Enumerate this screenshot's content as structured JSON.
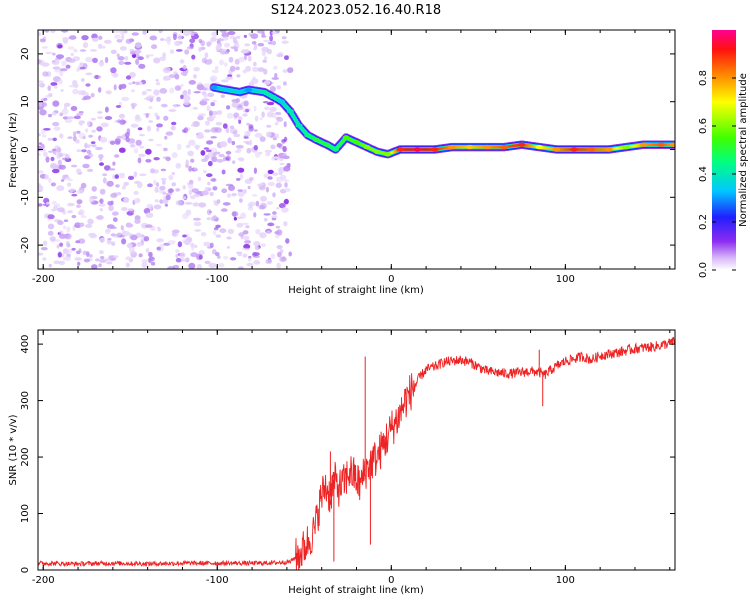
{
  "title": "S124.2023.052.16.40.R18",
  "chart_data": [
    {
      "type": "heatmap",
      "xlabel": "Height of straight line (km)",
      "ylabel": "Frequency (Hz)",
      "xlim": [
        -203,
        163
      ],
      "ylim": [
        -25,
        25
      ],
      "x_ticks": [
        -200,
        -100,
        0,
        100
      ],
      "x_tick_labels": [
        "-200",
        "-100",
        "0",
        "100"
      ],
      "y_ticks": [
        -20,
        -10,
        0,
        10,
        20
      ],
      "y_tick_labels": [
        "-20",
        "-10",
        "0",
        "10",
        "20"
      ],
      "colorbar": {
        "label": "Normalized spectral amplitude",
        "range": [
          0,
          1
        ],
        "ticks": [
          0.0,
          0.2,
          0.4,
          0.6,
          0.8
        ],
        "tick_labels": [
          "0.0",
          "0.2",
          "0.4",
          "0.6",
          "0.8"
        ]
      },
      "noise_region_x": [
        -203,
        -58
      ],
      "signal_track": [
        {
          "x": -102,
          "y": 13,
          "amp": 0.3
        },
        {
          "x": -95,
          "y": 12.5,
          "amp": 0.35
        },
        {
          "x": -87,
          "y": 12,
          "amp": 0.35
        },
        {
          "x": -82,
          "y": 12.5,
          "amp": 0.3
        },
        {
          "x": -73,
          "y": 12,
          "amp": 0.4
        },
        {
          "x": -68,
          "y": 11,
          "amp": 0.4
        },
        {
          "x": -63,
          "y": 10,
          "amp": 0.35
        },
        {
          "x": -58,
          "y": 8,
          "amp": 0.4
        },
        {
          "x": -53,
          "y": 5,
          "amp": 0.4
        },
        {
          "x": -48,
          "y": 3,
          "amp": 0.45
        },
        {
          "x": -43,
          "y": 2,
          "amp": 0.5
        },
        {
          "x": -37,
          "y": 1,
          "amp": 0.5
        },
        {
          "x": -32,
          "y": 0,
          "amp": 0.45
        },
        {
          "x": -26,
          "y": 2.5,
          "amp": 0.55
        },
        {
          "x": -20,
          "y": 1.5,
          "amp": 0.55
        },
        {
          "x": -14,
          "y": 0.5,
          "amp": 0.6
        },
        {
          "x": -8,
          "y": -0.5,
          "amp": 0.6
        },
        {
          "x": -2,
          "y": -1,
          "amp": 0.6
        },
        {
          "x": 5,
          "y": 0,
          "amp": 0.9
        },
        {
          "x": 15,
          "y": 0,
          "amp": 0.95
        },
        {
          "x": 25,
          "y": 0,
          "amp": 0.9
        },
        {
          "x": 35,
          "y": 0.5,
          "amp": 0.8
        },
        {
          "x": 45,
          "y": 0.5,
          "amp": 0.75
        },
        {
          "x": 55,
          "y": 0.5,
          "amp": 0.8
        },
        {
          "x": 65,
          "y": 0.5,
          "amp": 0.85
        },
        {
          "x": 75,
          "y": 1,
          "amp": 0.9
        },
        {
          "x": 85,
          "y": 0.5,
          "amp": 0.7
        },
        {
          "x": 95,
          "y": 0,
          "amp": 0.8
        },
        {
          "x": 105,
          "y": 0,
          "amp": 0.9
        },
        {
          "x": 115,
          "y": 0,
          "amp": 0.85
        },
        {
          "x": 125,
          "y": 0,
          "amp": 0.8
        },
        {
          "x": 135,
          "y": 0.5,
          "amp": 0.6
        },
        {
          "x": 145,
          "y": 1,
          "amp": 0.8
        },
        {
          "x": 155,
          "y": 1,
          "amp": 0.85
        },
        {
          "x": 162,
          "y": 1,
          "amp": 0.8
        }
      ]
    },
    {
      "type": "line",
      "xlabel": "Height of straight line (km)",
      "ylabel": "SNR (10 * v/v)",
      "xlim": [
        -203,
        163
      ],
      "ylim": [
        0,
        425
      ],
      "x_ticks": [
        -200,
        -100,
        0,
        100
      ],
      "x_tick_labels": [
        "-200",
        "-100",
        "0",
        "100"
      ],
      "y_ticks": [
        0,
        100,
        200,
        300,
        400
      ],
      "y_tick_labels": [
        "0",
        "100",
        "200",
        "300",
        "400"
      ],
      "color": "#ee2222",
      "series": [
        {
          "x": [
            -203,
            -180,
            -160,
            -140,
            -120,
            -100,
            -80,
            -65,
            -58,
            -52,
            -48,
            -44,
            -41,
            -38,
            -35,
            -33,
            -30,
            -27,
            -24,
            -21,
            -18,
            -15,
            -12,
            -8,
            -4,
            0,
            4,
            8,
            12,
            16,
            20,
            25,
            30,
            35,
            40,
            45,
            50,
            55,
            60,
            65,
            70,
            75,
            80,
            85,
            88,
            92,
            100,
            110,
            115,
            120,
            130,
            140,
            150,
            158,
            163
          ],
          "values": [
            12,
            11,
            12,
            11,
            12,
            12,
            12,
            13,
            15,
            30,
            50,
            70,
            120,
            150,
            130,
            160,
            145,
            155,
            175,
            165,
            150,
            175,
            190,
            200,
            225,
            250,
            270,
            300,
            320,
            340,
            355,
            360,
            368,
            370,
            372,
            368,
            360,
            352,
            350,
            348,
            348,
            350,
            352,
            350,
            345,
            355,
            370,
            378,
            372,
            380,
            385,
            392,
            395,
            400,
            405
          ]
        }
      ],
      "spikes": [
        {
          "x": -35,
          "y": 210
        },
        {
          "x": -33,
          "y": 15
        },
        {
          "x": -15,
          "y": 378
        },
        {
          "x": -12,
          "y": 45
        },
        {
          "x": 85,
          "y": 390
        },
        {
          "x": 87,
          "y": 290
        }
      ]
    }
  ]
}
